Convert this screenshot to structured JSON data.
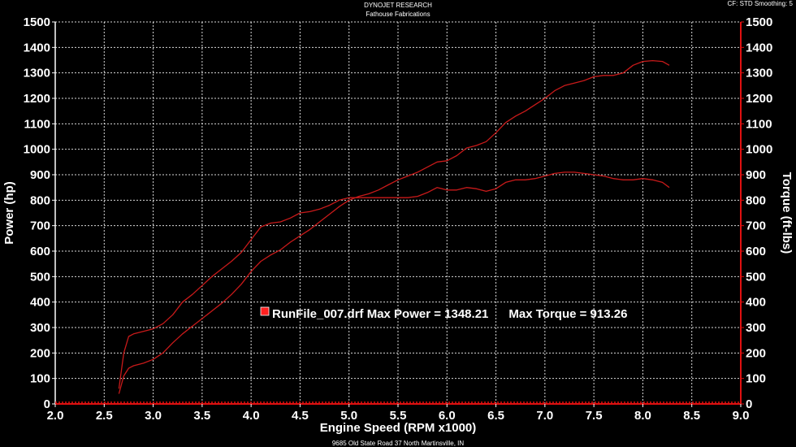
{
  "header": {
    "line1": "DYNOJET RESEARCH",
    "line2": "Fathouse Fabrications",
    "corner": "CF: STD  Smoothing: 5"
  },
  "footer": "9685 Old State Road 37 North Martinsville, IN",
  "colors": {
    "background": "#000000",
    "grid": "#ffffff",
    "axis_right": "#e01010",
    "curve": "#c81a1a"
  },
  "chart_data": {
    "type": "line",
    "title": "",
    "xlabel": "Engine Speed (RPM x1000)",
    "ylabel_left": "Power (hp)",
    "ylabel_right": "Torque (ft-lbs)",
    "xlim": [
      2.0,
      9.0
    ],
    "ylim": [
      0,
      1500
    ],
    "x_ticks": [
      "2.0",
      "2.5",
      "3.0",
      "3.5",
      "4.0",
      "4.5",
      "5.0",
      "5.5",
      "6.0",
      "6.5",
      "7.0",
      "7.5",
      "8.0",
      "8.5",
      "9.0"
    ],
    "y_ticks": [
      "0",
      "100",
      "200",
      "300",
      "400",
      "500",
      "600",
      "700",
      "800",
      "900",
      "1000",
      "1100",
      "1200",
      "1300",
      "1400",
      "1500"
    ],
    "grid": true,
    "legend": {
      "text": "RunFile_007.drf Max Power = 1348.21      Max Torque = 913.26",
      "placement": "center",
      "marker_color": "#ff2020"
    },
    "series": [
      {
        "role": "power",
        "x": [
          2.65,
          2.7,
          2.75,
          2.8,
          2.9,
          3.0,
          3.1,
          3.2,
          3.3,
          3.4,
          3.5,
          3.6,
          3.7,
          3.8,
          3.9,
          4.0,
          4.1,
          4.2,
          4.3,
          4.4,
          4.5,
          4.6,
          4.7,
          4.8,
          4.9,
          5.0,
          5.1,
          5.2,
          5.3,
          5.4,
          5.5,
          5.6,
          5.7,
          5.8,
          5.9,
          6.0,
          6.1,
          6.2,
          6.3,
          6.4,
          6.5,
          6.6,
          6.7,
          6.8,
          6.9,
          7.0,
          7.1,
          7.2,
          7.3,
          7.4,
          7.5,
          7.6,
          7.7,
          7.8,
          7.9,
          8.0,
          8.1,
          8.2,
          8.27
        ],
        "values": [
          40,
          110,
          140,
          150,
          160,
          175,
          200,
          240,
          275,
          305,
          335,
          365,
          395,
          430,
          470,
          520,
          560,
          585,
          605,
          635,
          660,
          685,
          715,
          745,
          775,
          800,
          815,
          825,
          840,
          860,
          880,
          895,
          910,
          930,
          950,
          955,
          975,
          1005,
          1015,
          1030,
          1065,
          1105,
          1130,
          1150,
          1175,
          1200,
          1230,
          1250,
          1260,
          1270,
          1285,
          1290,
          1290,
          1300,
          1330,
          1345,
          1348,
          1345,
          1330
        ]
      },
      {
        "role": "torque",
        "x": [
          2.65,
          2.7,
          2.75,
          2.8,
          2.9,
          3.0,
          3.1,
          3.2,
          3.3,
          3.4,
          3.5,
          3.6,
          3.7,
          3.8,
          3.9,
          4.0,
          4.1,
          4.2,
          4.3,
          4.4,
          4.5,
          4.6,
          4.7,
          4.8,
          4.9,
          5.0,
          5.1,
          5.2,
          5.3,
          5.4,
          5.5,
          5.6,
          5.7,
          5.8,
          5.9,
          6.0,
          6.1,
          6.2,
          6.3,
          6.4,
          6.5,
          6.6,
          6.7,
          6.8,
          6.9,
          7.0,
          7.1,
          7.2,
          7.3,
          7.4,
          7.5,
          7.6,
          7.7,
          7.8,
          7.9,
          8.0,
          8.1,
          8.2,
          8.27
        ],
        "values": [
          60,
          200,
          265,
          275,
          285,
          295,
          315,
          350,
          400,
          430,
          465,
          500,
          530,
          560,
          595,
          645,
          695,
          710,
          715,
          730,
          750,
          755,
          765,
          780,
          800,
          810,
          810,
          810,
          810,
          810,
          810,
          810,
          815,
          830,
          850,
          840,
          840,
          850,
          845,
          835,
          845,
          870,
          880,
          880,
          885,
          895,
          905,
          910,
          910,
          905,
          900,
          895,
          885,
          880,
          880,
          885,
          880,
          870,
          850
        ]
      }
    ]
  }
}
